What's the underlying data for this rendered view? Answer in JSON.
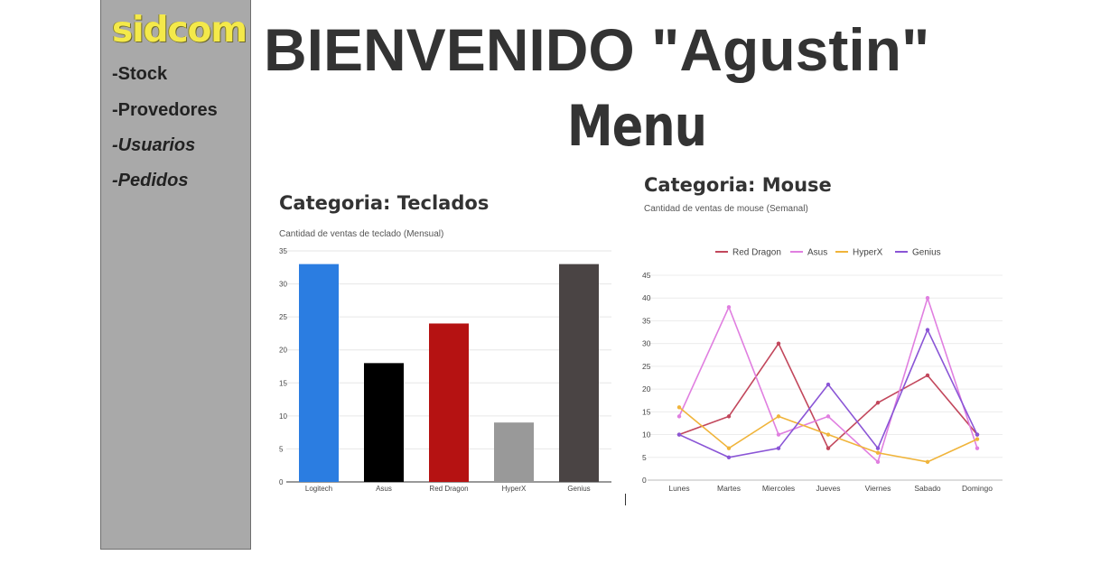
{
  "sidebar": {
    "logo": "sidcom",
    "items": [
      {
        "label": "-Stock"
      },
      {
        "label": "-Provedores"
      },
      {
        "label": "-Usuarios"
      },
      {
        "label": "-Pedidos"
      }
    ]
  },
  "header": {
    "welcome": "BIENVENIDO \"Agustin\"",
    "menu": "Menu"
  },
  "charts": {
    "teclados": {
      "title": "Categoria: Teclados",
      "subtitle": "Cantidad de ventas  de teclado (Mensual)"
    },
    "mouse": {
      "title": "Categoria: Mouse",
      "subtitle": "Cantidad de ventas de mouse (Semanal)"
    }
  },
  "chart_data": [
    {
      "type": "bar",
      "title": "Categoria: Teclados",
      "subtitle": "Cantidad de ventas  de teclado (Mensual)",
      "categories": [
        "Logitech",
        "Asus",
        "Red Dragon",
        "HyperX",
        "Genius"
      ],
      "values": [
        33,
        18,
        24,
        9,
        33
      ],
      "colors": [
        "#2b7de1",
        "#000000",
        "#b51212",
        "#999999",
        "#4a4444"
      ],
      "yticks": [
        0,
        5,
        10,
        15,
        20,
        25,
        30,
        35
      ],
      "ylim": [
        0,
        35
      ],
      "grid": true
    },
    {
      "type": "line",
      "title": "Categoria: Mouse",
      "subtitle": "Cantidad de ventas de mouse (Semanal)",
      "categories": [
        "Lunes",
        "Martes",
        "Miercoles",
        "Jueves",
        "Viernes",
        "Sabado",
        "Domingo"
      ],
      "series": [
        {
          "name": "Red Dragon",
          "color": "#c2475c",
          "values": [
            10,
            14,
            30,
            7,
            17,
            23,
            10
          ]
        },
        {
          "name": "Asus",
          "color": "#e07fe0",
          "values": [
            14,
            38,
            10,
            14,
            4,
            40,
            7
          ]
        },
        {
          "name": "HyperX",
          "color": "#f0b43a",
          "values": [
            16,
            7,
            14,
            10,
            6,
            4,
            9
          ]
        },
        {
          "name": "Genius",
          "color": "#8a55d6",
          "values": [
            10,
            5,
            7,
            21,
            7,
            33,
            10
          ]
        }
      ],
      "yticks": [
        0,
        5,
        10,
        15,
        20,
        25,
        30,
        35,
        40,
        45
      ],
      "ylim": [
        0,
        45
      ],
      "legend": "top",
      "grid": true
    }
  ]
}
